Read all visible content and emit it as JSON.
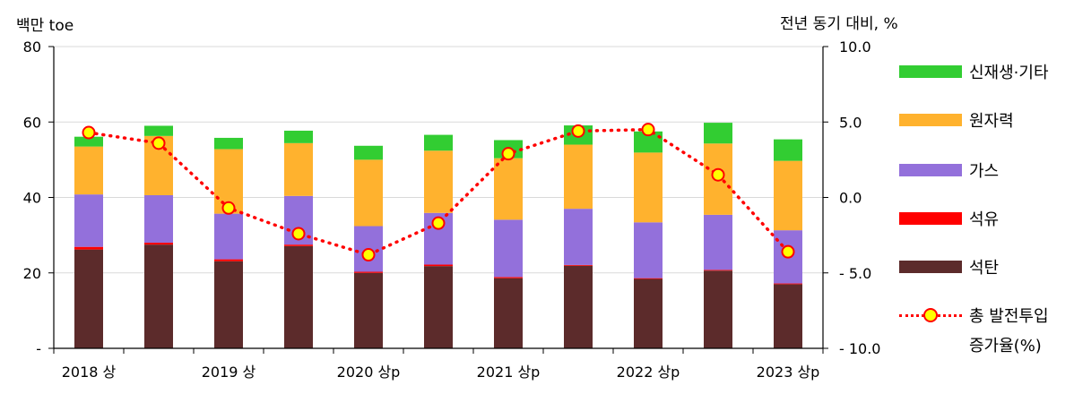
{
  "chart_data": {
    "type": "bar",
    "stacked": true,
    "y_left_label": "백만 toe",
    "y_right_label": "전년 동기 대비, %",
    "y_left_ticks": [
      "-",
      "20",
      "40",
      "60",
      "80"
    ],
    "y_right_ticks": [
      "- 10.0",
      "- 5.0",
      "0.0",
      "5.0",
      "10.0"
    ],
    "ylim_left": [
      0,
      80
    ],
    "ylim_right": [
      -10,
      10
    ],
    "x_tick_labels": [
      "2018 상",
      "",
      "2019 상",
      "",
      "2020 상p",
      "",
      "2021 상p",
      "",
      "2022 상p",
      "",
      "2023 상p"
    ],
    "series": [
      {
        "name": "석탄",
        "color": "#5c2b2b",
        "values": [
          26.2,
          27.5,
          23.1,
          27.1,
          20.0,
          21.8,
          18.6,
          21.9,
          18.4,
          20.6,
          17.0
        ]
      },
      {
        "name": "석유",
        "color": "#ff0000",
        "values": [
          0.7,
          0.5,
          0.5,
          0.4,
          0.3,
          0.4,
          0.3,
          0.2,
          0.2,
          0.2,
          0.2
        ]
      },
      {
        "name": "가스",
        "color": "#9370db",
        "values": [
          13.9,
          12.6,
          12.1,
          12.9,
          12.1,
          13.7,
          15.2,
          14.9,
          14.8,
          14.6,
          14.1
        ]
      },
      {
        "name": "원자력",
        "color": "#ffb22e",
        "values": [
          12.7,
          15.7,
          17.1,
          14.0,
          17.6,
          16.5,
          16.3,
          17.0,
          18.5,
          18.9,
          18.4
        ]
      },
      {
        "name": "신재생·기타",
        "color": "#32cd32",
        "values": [
          2.6,
          2.7,
          3.0,
          3.3,
          3.7,
          4.2,
          4.8,
          5.1,
          5.6,
          5.5,
          5.7
        ]
      }
    ],
    "line_series": {
      "name": "총 발전투입 증가율(%)",
      "name_line1": "총 발전투입",
      "name_line2": "증가율(%)",
      "color": "#ff0000",
      "marker_color": "#ffff00",
      "values": [
        4.3,
        3.6,
        -0.7,
        -2.4,
        -3.8,
        -1.7,
        2.9,
        4.4,
        4.5,
        1.5,
        -3.6
      ]
    },
    "legend_order": [
      "신재생·기타",
      "원자력",
      "가스",
      "석유",
      "석탄"
    ],
    "legend_position": "right",
    "grid": "horizontal"
  }
}
